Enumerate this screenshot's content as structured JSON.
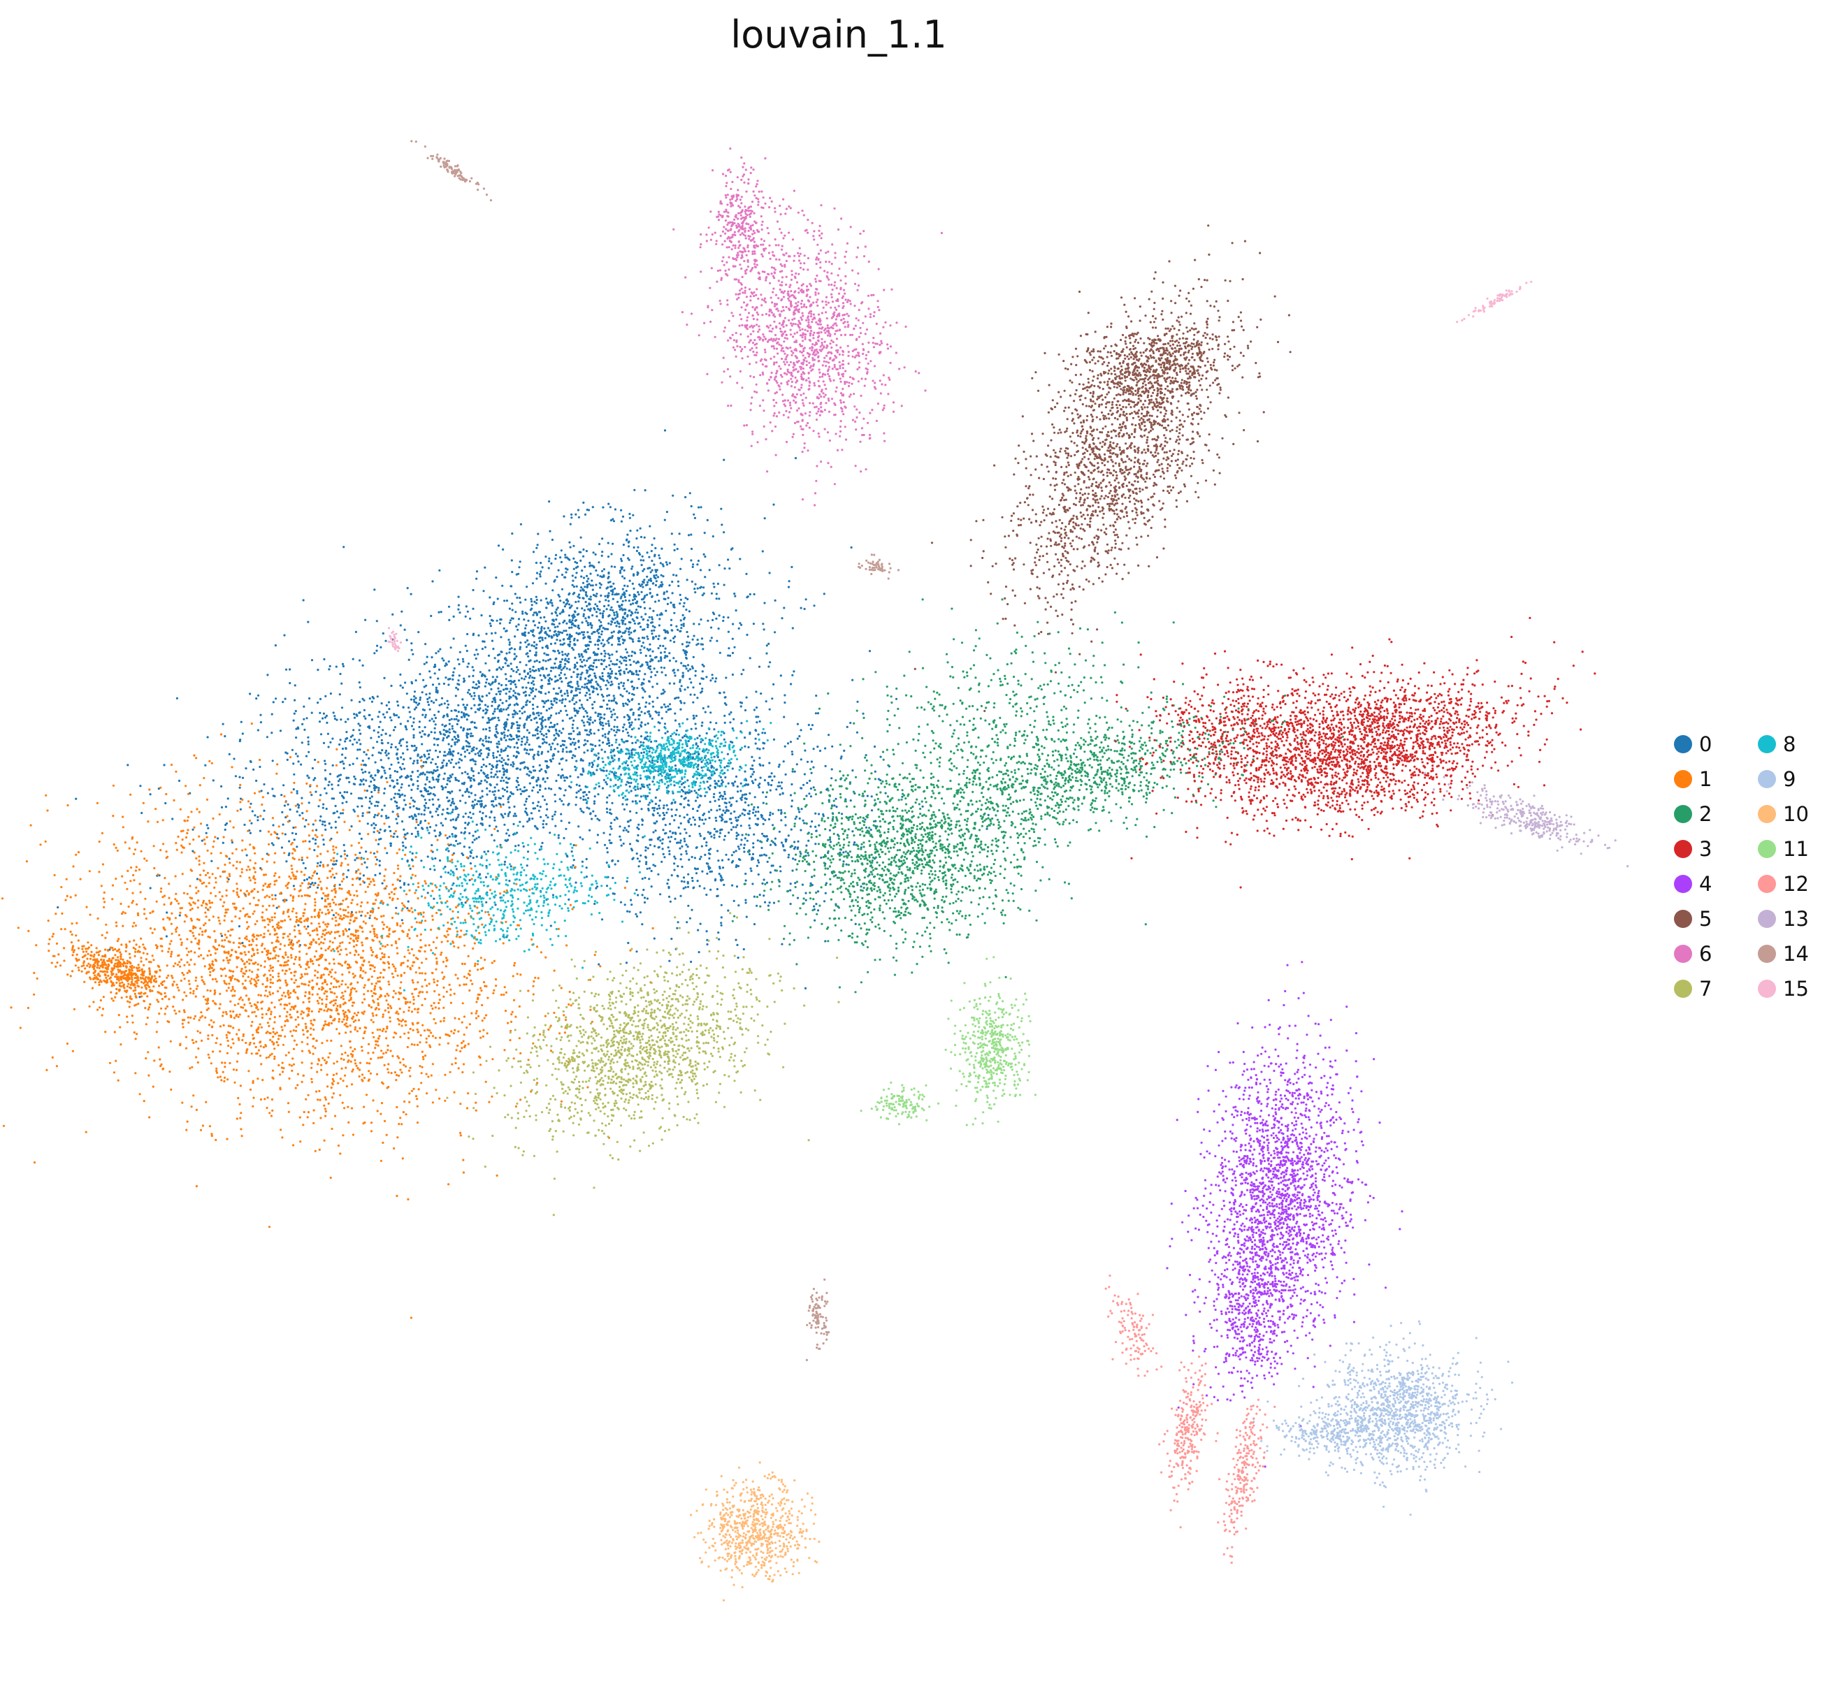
{
  "chart_data": {
    "type": "scatter",
    "title": "louvain_1.1",
    "xlabel": "",
    "ylabel": "",
    "axes_visible": false,
    "grid": false,
    "legend_position": "right",
    "series": [
      {
        "name": "0",
        "color": "#1f77b4"
      },
      {
        "name": "1",
        "color": "#ff7f0e"
      },
      {
        "name": "2",
        "color": "#279e68"
      },
      {
        "name": "3",
        "color": "#d62728"
      },
      {
        "name": "4",
        "color": "#aa40fc"
      },
      {
        "name": "5",
        "color": "#8c564b"
      },
      {
        "name": "6",
        "color": "#e377c2"
      },
      {
        "name": "7",
        "color": "#b5bd61"
      },
      {
        "name": "8",
        "color": "#17becf"
      },
      {
        "name": "9",
        "color": "#aec7e8"
      },
      {
        "name": "10",
        "color": "#ffbb78"
      },
      {
        "name": "11",
        "color": "#98df8a"
      },
      {
        "name": "12",
        "color": "#ff9896"
      },
      {
        "name": "13",
        "color": "#c5b0d5"
      },
      {
        "name": "14",
        "color": "#c49c94"
      },
      {
        "name": "15",
        "color": "#f7b6d2"
      }
    ]
  }
}
